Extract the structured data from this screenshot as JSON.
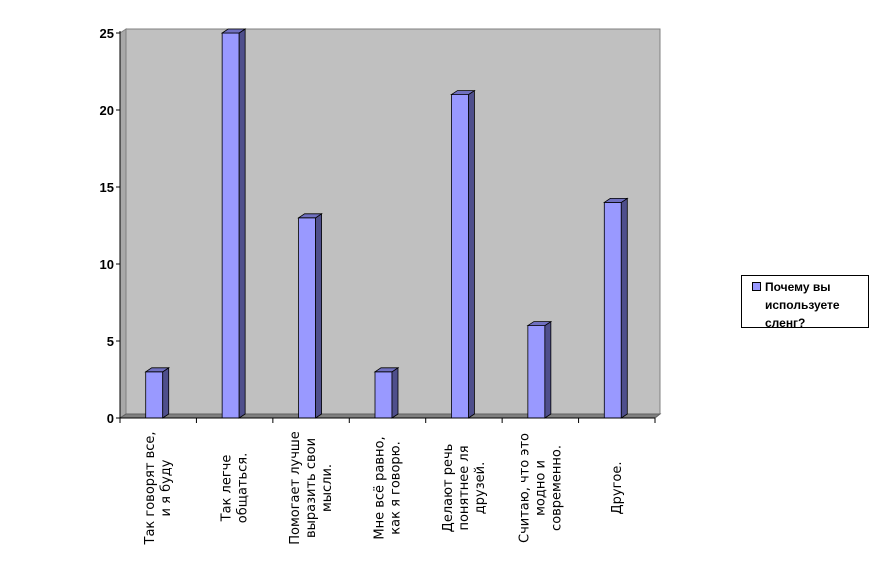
{
  "chart_data": {
    "type": "bar",
    "categories": [
      [
        "Так говорят все,",
        "и я буду"
      ],
      [
        "Так легче",
        "общаться."
      ],
      [
        "Помогает лучше",
        "выразить свои",
        "мысли."
      ],
      [
        "Мне всё равно,",
        "как я говорю."
      ],
      [
        "Делают речь",
        "понятнее ля",
        "друзей."
      ],
      [
        "Считаю, что это",
        "модно и",
        "современно."
      ],
      [
        "Другое."
      ]
    ],
    "series": [
      {
        "name": "Почему вы используете сленг?",
        "values": [
          3,
          25,
          13,
          3,
          21,
          6,
          14
        ]
      }
    ],
    "ylim": [
      0,
      25
    ],
    "yticks": [
      0,
      5,
      10,
      15,
      20,
      25
    ],
    "grid": false,
    "legend": "right",
    "colors": {
      "bar_front": "#9999ff",
      "bar_side": "#4f4f8c",
      "bar_top": "#7070c0",
      "wall": "#c0c0c0",
      "floor": "#808080"
    }
  }
}
